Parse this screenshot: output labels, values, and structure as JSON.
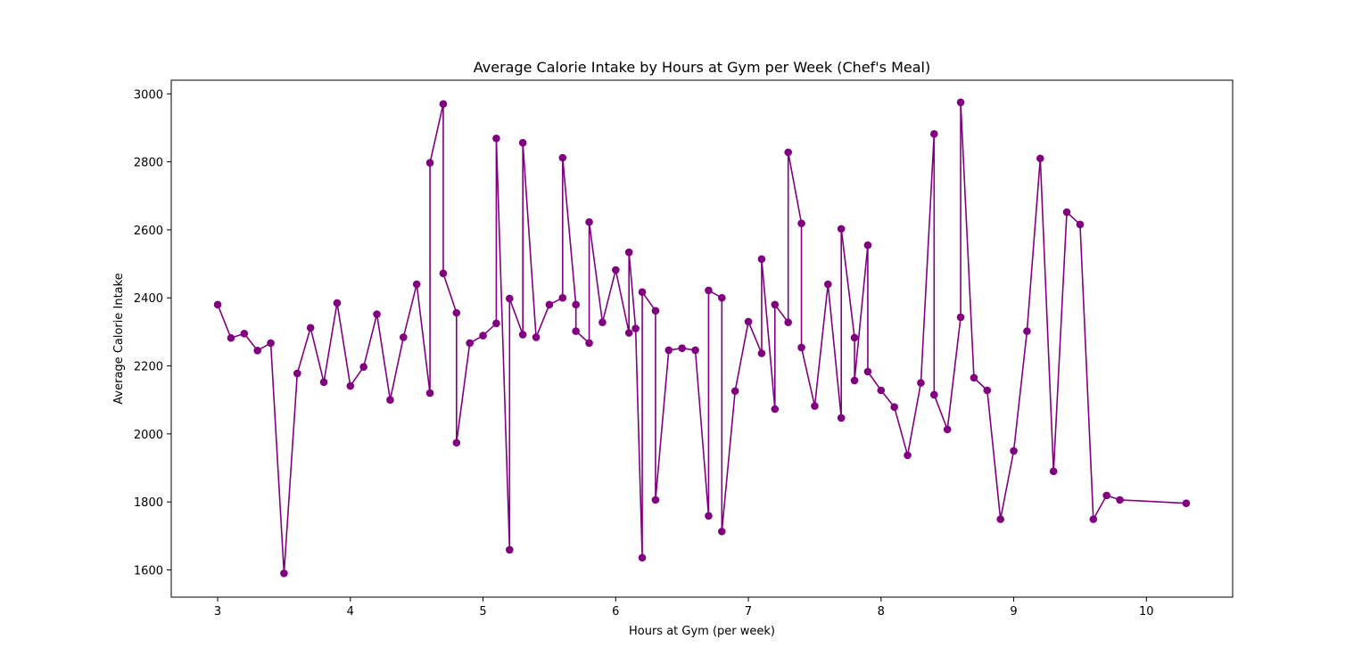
{
  "chart_data": {
    "type": "line",
    "title": "Average Calorie Intake by Hours at Gym per Week (Chef's Meal)",
    "xlabel": "Hours at Gym (per week)",
    "ylabel": "Average Calorie Intake",
    "xlim": [
      2.65,
      10.65
    ],
    "ylim": [
      1520,
      3040
    ],
    "xticks": [
      3,
      4,
      5,
      6,
      7,
      8,
      9,
      10
    ],
    "yticks": [
      1600,
      1800,
      2000,
      2200,
      2400,
      2600,
      2800,
      3000
    ],
    "grid": false,
    "color": "#800080",
    "marker": "circle",
    "series": [
      {
        "points": [
          [
            3.0,
            2380
          ],
          [
            3.1,
            2282
          ],
          [
            3.2,
            2295
          ],
          [
            3.3,
            2245
          ],
          [
            3.4,
            2267
          ],
          [
            3.5,
            1590
          ],
          [
            3.6,
            2178
          ],
          [
            3.7,
            2312
          ],
          [
            3.8,
            2152
          ],
          [
            3.9,
            2385
          ],
          [
            4.0,
            2141
          ],
          [
            4.1,
            2197
          ],
          [
            4.2,
            2352
          ],
          [
            4.3,
            2100
          ],
          [
            4.4,
            2284
          ],
          [
            4.5,
            2440
          ],
          [
            4.6,
            2120
          ],
          [
            4.6,
            2797
          ],
          [
            4.7,
            2970
          ],
          [
            4.7,
            2472
          ],
          [
            4.8,
            2356
          ],
          [
            4.8,
            1974
          ],
          [
            4.9,
            2267
          ],
          [
            5.0,
            2289
          ],
          [
            5.1,
            2325
          ],
          [
            5.1,
            2869
          ],
          [
            5.2,
            1659
          ],
          [
            5.2,
            2398
          ],
          [
            5.3,
            2292
          ],
          [
            5.3,
            2856
          ],
          [
            5.4,
            2284
          ],
          [
            5.5,
            2380
          ],
          [
            5.6,
            2400
          ],
          [
            5.6,
            2812
          ],
          [
            5.7,
            2380
          ],
          [
            5.7,
            2302
          ],
          [
            5.8,
            2267
          ],
          [
            5.8,
            2623
          ],
          [
            5.9,
            2328
          ],
          [
            6.0,
            2482
          ],
          [
            6.1,
            2297
          ],
          [
            6.1,
            2534
          ],
          [
            6.15,
            2310
          ],
          [
            6.2,
            1636
          ],
          [
            6.2,
            2417
          ],
          [
            6.3,
            2362
          ],
          [
            6.3,
            1806
          ],
          [
            6.4,
            2246
          ],
          [
            6.5,
            2252
          ],
          [
            6.6,
            2246
          ],
          [
            6.7,
            1759
          ],
          [
            6.7,
            2422
          ],
          [
            6.8,
            2400
          ],
          [
            6.8,
            1713
          ],
          [
            6.9,
            2126
          ],
          [
            7.0,
            2330
          ],
          [
            7.1,
            2237
          ],
          [
            7.1,
            2514
          ],
          [
            7.2,
            2073
          ],
          [
            7.2,
            2380
          ],
          [
            7.3,
            2328
          ],
          [
            7.3,
            2828
          ],
          [
            7.4,
            2619
          ],
          [
            7.4,
            2254
          ],
          [
            7.5,
            2082
          ],
          [
            7.6,
            2440
          ],
          [
            7.7,
            2047
          ],
          [
            7.7,
            2603
          ],
          [
            7.8,
            2283
          ],
          [
            7.8,
            2157
          ],
          [
            7.9,
            2555
          ],
          [
            7.9,
            2183
          ],
          [
            8.0,
            2128
          ],
          [
            8.1,
            2079
          ],
          [
            8.2,
            1937
          ],
          [
            8.3,
            2150
          ],
          [
            8.4,
            2882
          ],
          [
            8.4,
            2115
          ],
          [
            8.5,
            2013
          ],
          [
            8.6,
            2343
          ],
          [
            8.6,
            2975
          ],
          [
            8.7,
            2165
          ],
          [
            8.8,
            2128
          ],
          [
            8.9,
            1749
          ],
          [
            9.0,
            1950
          ],
          [
            9.1,
            2302
          ],
          [
            9.2,
            2810
          ],
          [
            9.3,
            1890
          ],
          [
            9.4,
            2652
          ],
          [
            9.5,
            2616
          ],
          [
            9.6,
            1749
          ],
          [
            9.7,
            1819
          ],
          [
            9.8,
            1806
          ],
          [
            10.3,
            1796
          ]
        ]
      }
    ]
  }
}
